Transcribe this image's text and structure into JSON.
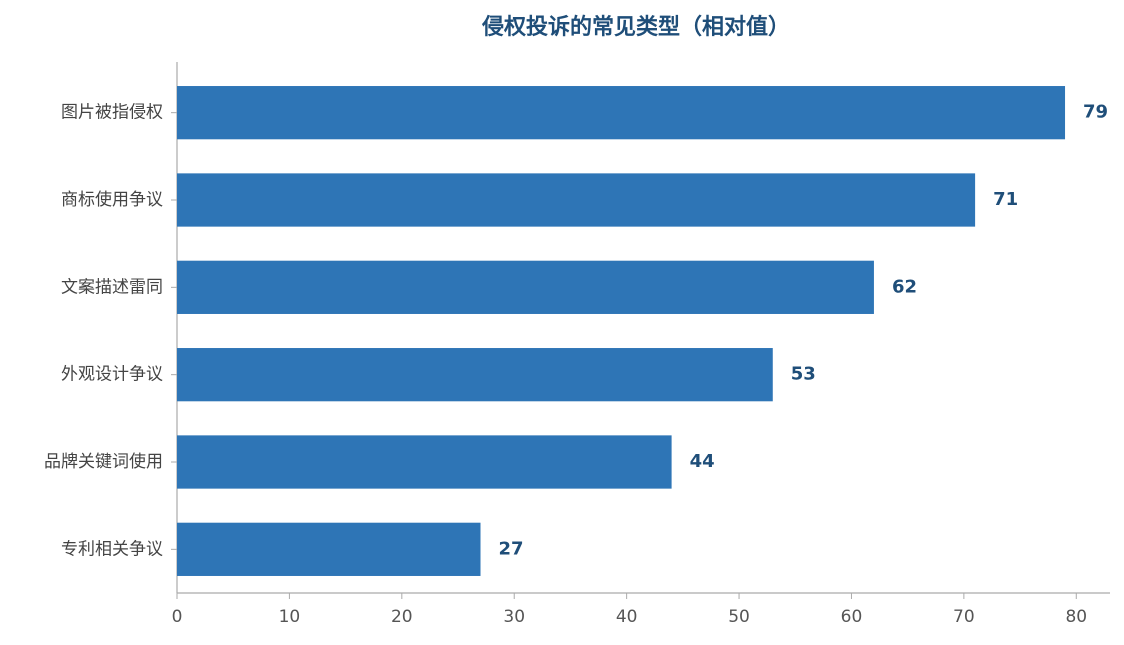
{
  "chart_data": {
    "type": "barh",
    "title": "侵权投诉的常见类型（相对值）",
    "categories": [
      "图片被指侵权",
      "商标使用争议",
      "文案描述雷同",
      "外观设计争议",
      "品牌关键词使用",
      "专利相关争议"
    ],
    "values": [
      79,
      71,
      62,
      53,
      44,
      27
    ],
    "color": "#2e75b6",
    "xlim": [
      0,
      83
    ],
    "xticks": [
      0,
      10,
      20,
      30,
      40,
      50,
      60,
      70,
      80
    ]
  }
}
